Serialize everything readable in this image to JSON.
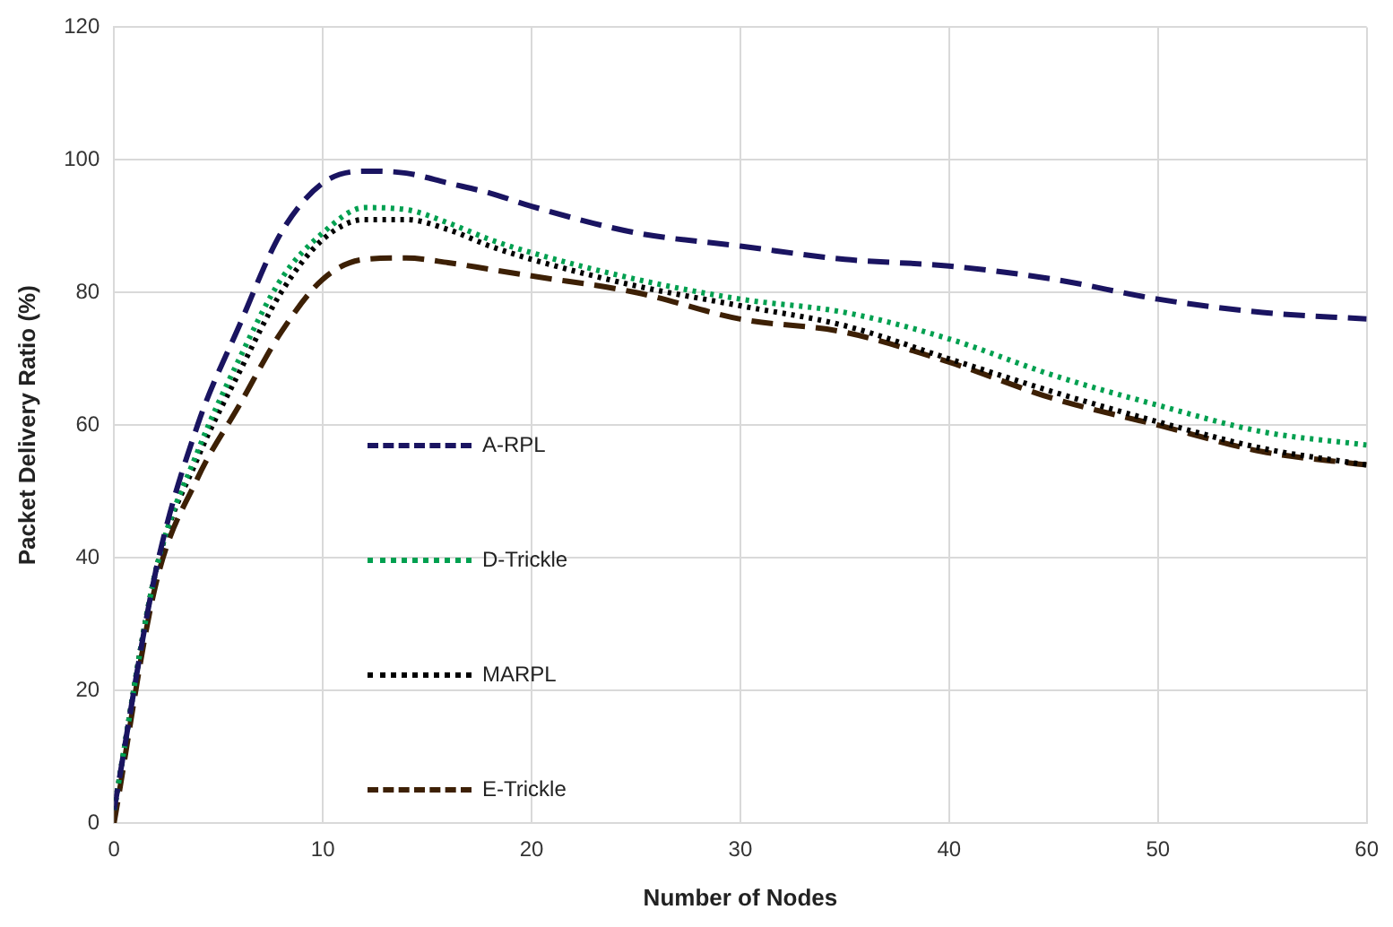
{
  "chart_data": {
    "type": "line",
    "xlabel": "Number of Nodes",
    "ylabel": "Packet Delivery Ratio (%)",
    "xlim": [
      0,
      60
    ],
    "xticks": [
      0,
      10,
      20,
      30,
      40,
      50,
      60
    ],
    "ylim": [
      0,
      120
    ],
    "yticks": [
      0,
      20,
      40,
      60,
      80,
      100,
      120
    ],
    "grid": true,
    "legend": "left",
    "marker": "none",
    "x": [
      0,
      2,
      4,
      6,
      8,
      10,
      12,
      14,
      16,
      18,
      20,
      25,
      30,
      35,
      40,
      45,
      50,
      55,
      60
    ],
    "series": [
      {
        "name": "A-RPL",
        "color": "#1a1461",
        "line_style": "dashed",
        "values": [
          2,
          38,
          60,
          75,
          89,
          96.5,
          98.3,
          98,
          96.5,
          95,
          93,
          89,
          87,
          85,
          84,
          82,
          79,
          77,
          76
        ]
      },
      {
        "name": "D-Trickle",
        "color": "#00a050",
        "line_style": "dotted",
        "values": [
          2,
          38,
          56,
          70,
          82,
          89,
          92.8,
          92.5,
          90.5,
          88,
          86,
          82,
          79,
          77,
          73,
          67.5,
          63,
          59,
          57
        ]
      },
      {
        "name": "MARPL",
        "color": "#000000",
        "line_style": "dotted",
        "values": [
          2,
          38,
          55,
          68,
          80,
          88,
          91,
          91,
          89.5,
          87,
          85,
          81,
          78,
          75,
          70,
          65,
          60.5,
          56.5,
          54
        ]
      },
      {
        "name": "E-Trickle",
        "color": "#3d2005",
        "line_style": "dashed",
        "values": [
          0,
          36,
          52,
          63,
          74,
          82,
          85,
          85.2,
          84.5,
          83.5,
          82.5,
          80,
          76,
          74,
          69.5,
          64,
          60,
          56,
          54
        ]
      }
    ]
  }
}
